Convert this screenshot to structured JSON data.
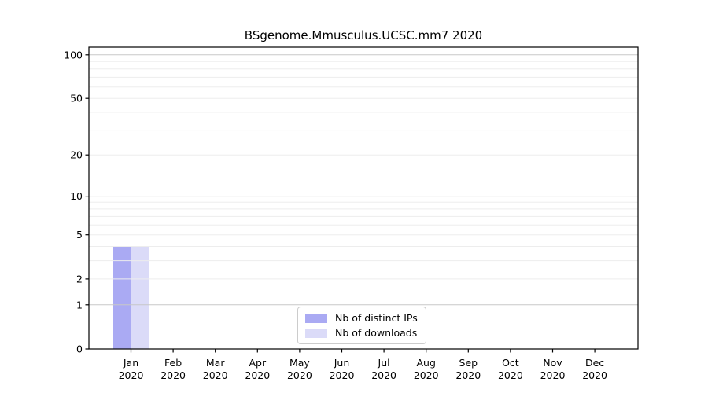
{
  "chart_data": {
    "type": "bar",
    "title": "BSgenome.Mmusculus.UCSC.mm7 2020",
    "year": "2020",
    "months": [
      "Jan",
      "Feb",
      "Mar",
      "Apr",
      "May",
      "Jun",
      "Jul",
      "Aug",
      "Sep",
      "Oct",
      "Nov",
      "Dec"
    ],
    "series": [
      {
        "name": "Nb of distinct IPs",
        "color": "#aaaaf3",
        "values": [
          4,
          0,
          0,
          0,
          0,
          0,
          0,
          0,
          0,
          0,
          0,
          0
        ]
      },
      {
        "name": "Nb of downloads",
        "color": "#dbdbf8",
        "values": [
          4,
          0,
          0,
          0,
          0,
          0,
          0,
          0,
          0,
          0,
          0,
          0
        ]
      }
    ],
    "y_scale": "log1p",
    "ylim": [
      0,
      113
    ],
    "y_ticks": [
      0,
      1,
      2,
      5,
      10,
      20,
      50,
      100
    ],
    "y_major_gridlines": [
      1,
      10,
      100
    ],
    "y_minor_gridlines": [
      2,
      3,
      4,
      5,
      6,
      7,
      8,
      9,
      20,
      30,
      40,
      50,
      60,
      70,
      80,
      90
    ],
    "grid": true,
    "legend_position": "bottom-center",
    "colors": {
      "grid_minor": "#ededed",
      "grid_major": "#c8c8c8",
      "axis": "#000000",
      "text": "#000000",
      "background": "#ffffff"
    }
  }
}
